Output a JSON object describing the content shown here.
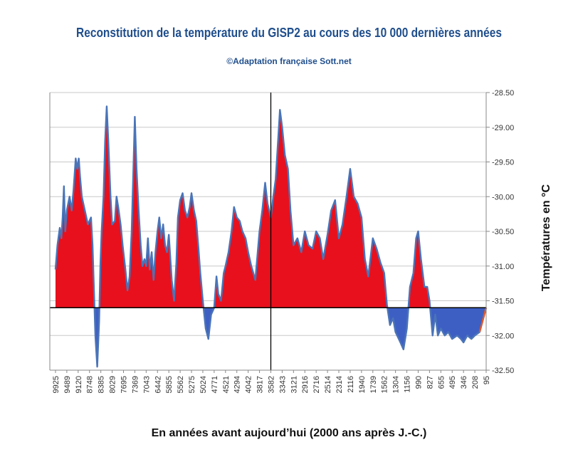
{
  "chart_data": {
    "type": "area",
    "title": "Reconstitution de la température du GISP2 au cours des 10 000 dernières années",
    "subtitle": "©Adaptation française Sott.net",
    "xlabel": "En années avant aujourd’hui (2000 ans après J.-C.)",
    "ylabel": "Températures en °C",
    "ylim": [
      -32.5,
      -28.5
    ],
    "y_ticks": [
      "-28.50",
      "-29.00",
      "-29.50",
      "-30.00",
      "-30.50",
      "-31.00",
      "-31.50",
      "-32.00",
      "-32.50"
    ],
    "x_ticks": [
      "9925",
      "9489",
      "9120",
      "8748",
      "8385",
      "8029",
      "7695",
      "7369",
      "7043",
      "6442",
      "5855",
      "5562",
      "5275",
      "5024",
      "4771",
      "4521",
      "4294",
      "4042",
      "3817",
      "3582",
      "3343",
      "3121",
      "2916",
      "2716",
      "2514",
      "2314",
      "2116",
      "1940",
      "1739",
      "1562",
      "1304",
      "1156",
      "990",
      "827",
      "655",
      "495",
      "346",
      "208",
      "95"
    ],
    "x_range": [
      9925,
      95
    ],
    "reference_line_y": -31.6,
    "vertical_marker_x": 3582,
    "grid": true,
    "series": [
      {
        "color": "#4a74b8",
        "fill_above": "#e8101c",
        "fill_below": "#3d5fc4",
        "points": [
          [
            9925,
            -31.05
          ],
          [
            9850,
            -30.7
          ],
          [
            9760,
            -30.45
          ],
          [
            9700,
            -30.6
          ],
          [
            9650,
            -30.3
          ],
          [
            9600,
            -29.85
          ],
          [
            9550,
            -30.5
          ],
          [
            9489,
            -30.2
          ],
          [
            9400,
            -30.0
          ],
          [
            9330,
            -30.2
          ],
          [
            9270,
            -29.9
          ],
          [
            9200,
            -29.45
          ],
          [
            9150,
            -29.6
          ],
          [
            9100,
            -29.45
          ],
          [
            9060,
            -29.7
          ],
          [
            9000,
            -30.0
          ],
          [
            8900,
            -30.2
          ],
          [
            8800,
            -30.4
          ],
          [
            8700,
            -30.3
          ],
          [
            8650,
            -30.7
          ],
          [
            8560,
            -32.0
          ],
          [
            8500,
            -32.45
          ],
          [
            8440,
            -31.8
          ],
          [
            8400,
            -31.0
          ],
          [
            8360,
            -30.5
          ],
          [
            8300,
            -30.0
          ],
          [
            8250,
            -29.2
          ],
          [
            8200,
            -28.7
          ],
          [
            8150,
            -29.2
          ],
          [
            8080,
            -30.0
          ],
          [
            8029,
            -30.4
          ],
          [
            7950,
            -30.35
          ],
          [
            7900,
            -30.0
          ],
          [
            7850,
            -30.15
          ],
          [
            7780,
            -30.4
          ],
          [
            7720,
            -30.7
          ],
          [
            7640,
            -31.05
          ],
          [
            7580,
            -31.35
          ],
          [
            7520,
            -31.15
          ],
          [
            7460,
            -30.5
          ],
          [
            7410,
            -29.6
          ],
          [
            7369,
            -28.85
          ],
          [
            7320,
            -29.6
          ],
          [
            7260,
            -30.2
          ],
          [
            7200,
            -30.7
          ],
          [
            7150,
            -31.0
          ],
          [
            7090,
            -30.9
          ],
          [
            7043,
            -31.0
          ],
          [
            6950,
            -30.6
          ],
          [
            6850,
            -31.05
          ],
          [
            6750,
            -30.8
          ],
          [
            6650,
            -31.2
          ],
          [
            6550,
            -30.8
          ],
          [
            6442,
            -30.5
          ],
          [
            6350,
            -30.3
          ],
          [
            6250,
            -30.6
          ],
          [
            6150,
            -30.4
          ],
          [
            6050,
            -30.7
          ],
          [
            5950,
            -30.8
          ],
          [
            5855,
            -30.55
          ],
          [
            5780,
            -31.2
          ],
          [
            5720,
            -31.5
          ],
          [
            5660,
            -30.95
          ],
          [
            5620,
            -30.3
          ],
          [
            5562,
            -30.05
          ],
          [
            5500,
            -29.95
          ],
          [
            5440,
            -30.2
          ],
          [
            5380,
            -30.3
          ],
          [
            5320,
            -30.15
          ],
          [
            5275,
            -29.95
          ],
          [
            5220,
            -30.2
          ],
          [
            5170,
            -30.35
          ],
          [
            5120,
            -30.75
          ],
          [
            5080,
            -31.1
          ],
          [
            5024,
            -31.5
          ],
          [
            4960,
            -31.9
          ],
          [
            4900,
            -32.05
          ],
          [
            4840,
            -31.7
          ],
          [
            4771,
            -31.6
          ],
          [
            4720,
            -31.15
          ],
          [
            4680,
            -31.4
          ],
          [
            4620,
            -31.5
          ],
          [
            4560,
            -31.1
          ],
          [
            4521,
            -31.0
          ],
          [
            4460,
            -30.8
          ],
          [
            4400,
            -30.5
          ],
          [
            4350,
            -30.15
          ],
          [
            4294,
            -30.3
          ],
          [
            4230,
            -30.35
          ],
          [
            4170,
            -30.5
          ],
          [
            4100,
            -30.6
          ],
          [
            4042,
            -30.8
          ],
          [
            3980,
            -31.0
          ],
          [
            3900,
            -31.2
          ],
          [
            3817,
            -30.5
          ],
          [
            3760,
            -30.2
          ],
          [
            3700,
            -29.8
          ],
          [
            3650,
            -30.1
          ],
          [
            3582,
            -30.3
          ],
          [
            3530,
            -30.0
          ],
          [
            3480,
            -29.75
          ],
          [
            3430,
            -29.2
          ],
          [
            3390,
            -28.75
          ],
          [
            3343,
            -29.0
          ],
          [
            3290,
            -29.4
          ],
          [
            3230,
            -29.6
          ],
          [
            3180,
            -30.2
          ],
          [
            3121,
            -30.7
          ],
          [
            3050,
            -30.6
          ],
          [
            2980,
            -30.8
          ],
          [
            2916,
            -30.5
          ],
          [
            2850,
            -30.7
          ],
          [
            2780,
            -30.75
          ],
          [
            2716,
            -30.5
          ],
          [
            2650,
            -30.6
          ],
          [
            2590,
            -30.9
          ],
          [
            2514,
            -30.55
          ],
          [
            2450,
            -30.2
          ],
          [
            2380,
            -30.05
          ],
          [
            2314,
            -30.6
          ],
          [
            2250,
            -30.4
          ],
          [
            2180,
            -30.0
          ],
          [
            2116,
            -29.6
          ],
          [
            2060,
            -30.0
          ],
          [
            2000,
            -30.1
          ],
          [
            1940,
            -30.3
          ],
          [
            1880,
            -30.9
          ],
          [
            1820,
            -31.15
          ],
          [
            1739,
            -30.6
          ],
          [
            1680,
            -30.75
          ],
          [
            1620,
            -30.95
          ],
          [
            1562,
            -31.1
          ],
          [
            1500,
            -31.55
          ],
          [
            1430,
            -31.85
          ],
          [
            1360,
            -31.75
          ],
          [
            1304,
            -31.95
          ],
          [
            1240,
            -32.1
          ],
          [
            1200,
            -32.2
          ],
          [
            1156,
            -31.9
          ],
          [
            1110,
            -31.3
          ],
          [
            1060,
            -31.1
          ],
          [
            1020,
            -30.6
          ],
          [
            990,
            -30.5
          ],
          [
            950,
            -30.9
          ],
          [
            900,
            -31.3
          ],
          [
            860,
            -31.3
          ],
          [
            827,
            -31.5
          ],
          [
            780,
            -32.0
          ],
          [
            740,
            -31.7
          ],
          [
            700,
            -32.0
          ],
          [
            655,
            -31.9
          ],
          [
            600,
            -32.0
          ],
          [
            550,
            -31.95
          ],
          [
            495,
            -32.05
          ],
          [
            430,
            -32.0
          ],
          [
            380,
            -32.05
          ],
          [
            346,
            -32.1
          ],
          [
            300,
            -32.0
          ],
          [
            250,
            -32.05
          ],
          [
            208,
            -32.0
          ],
          [
            160,
            -31.95
          ],
          [
            95,
            -31.6
          ]
        ]
      }
    ]
  }
}
